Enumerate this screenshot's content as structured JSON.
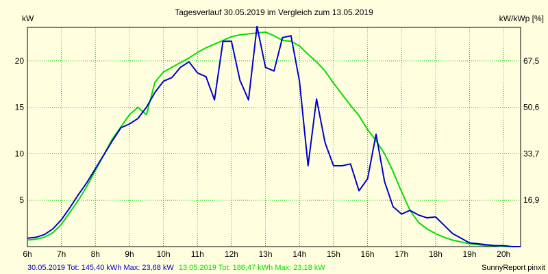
{
  "chart_data": {
    "type": "line",
    "title": "Tagesverlauf 30.05.2019 im Vergleich zum 13.05.2019",
    "ylabel_left": "kW",
    "ylabel_right": "kW/kWp [%]",
    "ylim": [
      0,
      23.6
    ],
    "x_range": [
      6.0,
      20.5
    ],
    "x_ticks": [
      "6h",
      "7h",
      "8h",
      "9h",
      "10h",
      "11h",
      "12h",
      "13h",
      "14h",
      "15h",
      "16h",
      "17h",
      "18h",
      "19h",
      "20h"
    ],
    "y_ticks_left": [
      "5",
      "10",
      "15",
      "20"
    ],
    "y_ticks_right": [
      "16,9",
      "33,7",
      "50,6",
      "67,5"
    ],
    "grid": true,
    "series": [
      {
        "name": "30.05.2019",
        "color": "#0000cc",
        "x": [
          6.0,
          6.25,
          6.5,
          6.75,
          7.0,
          7.25,
          7.5,
          7.75,
          8.0,
          8.25,
          8.5,
          8.75,
          9.0,
          9.25,
          9.5,
          9.75,
          10.0,
          10.25,
          10.5,
          10.75,
          11.0,
          11.25,
          11.5,
          11.75,
          12.0,
          12.25,
          12.5,
          12.75,
          13.0,
          13.25,
          13.5,
          13.75,
          14.0,
          14.25,
          14.5,
          14.75,
          15.0,
          15.25,
          15.5,
          15.75,
          16.0,
          16.25,
          16.5,
          16.75,
          17.0,
          17.25,
          17.5,
          17.75,
          18.0,
          18.25,
          18.5,
          18.75,
          19.0,
          19.25,
          19.5,
          19.75,
          20.0,
          20.25,
          20.5
        ],
        "y": [
          0.9,
          1.0,
          1.3,
          1.9,
          2.9,
          4.2,
          5.6,
          6.9,
          8.4,
          9.9,
          11.4,
          12.8,
          13.2,
          13.8,
          15.0,
          16.6,
          17.8,
          18.2,
          19.3,
          19.9,
          18.7,
          18.3,
          15.8,
          22.1,
          22.1,
          17.9,
          15.8,
          23.7,
          19.3,
          18.9,
          22.5,
          22.7,
          17.8,
          8.7,
          15.9,
          11.2,
          8.7,
          8.7,
          8.9,
          6.0,
          7.3,
          12.1,
          7.0,
          4.3,
          3.5,
          3.9,
          3.4,
          3.1,
          3.2,
          2.3,
          1.4,
          0.9,
          0.4,
          0.3,
          0.2,
          0.1,
          0.1,
          0.0,
          0.0
        ]
      },
      {
        "name": "13.05.2019",
        "color": "#00dd00",
        "x": [
          6.0,
          6.25,
          6.5,
          6.75,
          7.0,
          7.25,
          7.5,
          7.75,
          8.0,
          8.25,
          8.5,
          8.75,
          9.0,
          9.25,
          9.5,
          9.75,
          10.0,
          10.25,
          10.5,
          10.75,
          11.0,
          11.25,
          11.5,
          11.75,
          12.0,
          12.25,
          12.5,
          12.75,
          13.0,
          13.25,
          13.5,
          13.75,
          14.0,
          14.25,
          14.5,
          14.75,
          15.0,
          15.25,
          15.5,
          15.75,
          16.0,
          16.25,
          16.5,
          16.75,
          17.0,
          17.25,
          17.5,
          17.75,
          18.0,
          18.25,
          18.5,
          18.75,
          19.0,
          19.25,
          19.5,
          19.75,
          20.0,
          20.25,
          20.5
        ],
        "y": [
          0.7,
          0.8,
          1.0,
          1.5,
          2.4,
          3.7,
          5.0,
          6.5,
          8.2,
          9.9,
          11.6,
          12.9,
          14.2,
          15.0,
          14.2,
          17.7,
          18.8,
          19.3,
          19.8,
          20.3,
          20.9,
          21.4,
          21.8,
          22.2,
          22.6,
          22.8,
          22.9,
          23.0,
          23.1,
          22.7,
          22.2,
          22.1,
          21.6,
          20.7,
          19.9,
          18.9,
          17.6,
          16.4,
          15.2,
          14.1,
          12.6,
          11.4,
          10.0,
          8.1,
          5.9,
          3.9,
          2.6,
          1.9,
          1.4,
          1.0,
          0.7,
          0.5,
          0.3,
          0.2,
          0.1,
          0.1,
          0.0,
          0.0,
          0.0
        ]
      }
    ],
    "legend_texts": [
      "30.05.2019 Tot: 145,40 kWh Max: 23,68 kW",
      "13.05.2019 Tot: 186,47 kWh Max: 23,18 kW"
    ],
    "credit": "SunnyReport pinxit"
  }
}
